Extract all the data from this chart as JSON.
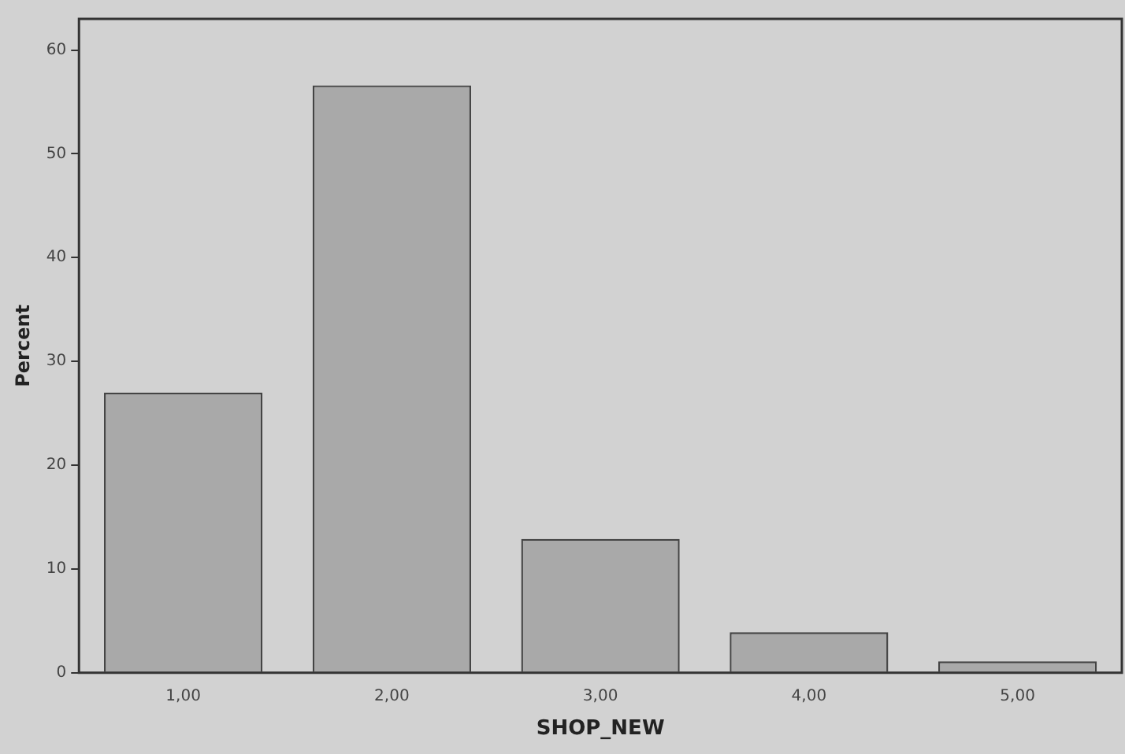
{
  "chart_data": {
    "type": "bar",
    "xlabel": "SHOP_NEW",
    "ylabel": "Percent",
    "categories": [
      "1,00",
      "2,00",
      "3,00",
      "4,00",
      "5,00"
    ],
    "values": [
      27,
      56.6,
      12.9,
      3.9,
      1.1
    ],
    "color": "#a9a9a9",
    "ylim": [
      0,
      63
    ],
    "yticks": [
      0,
      10,
      20,
      30,
      40,
      50,
      60
    ],
    "grid": false,
    "legend": false
  }
}
